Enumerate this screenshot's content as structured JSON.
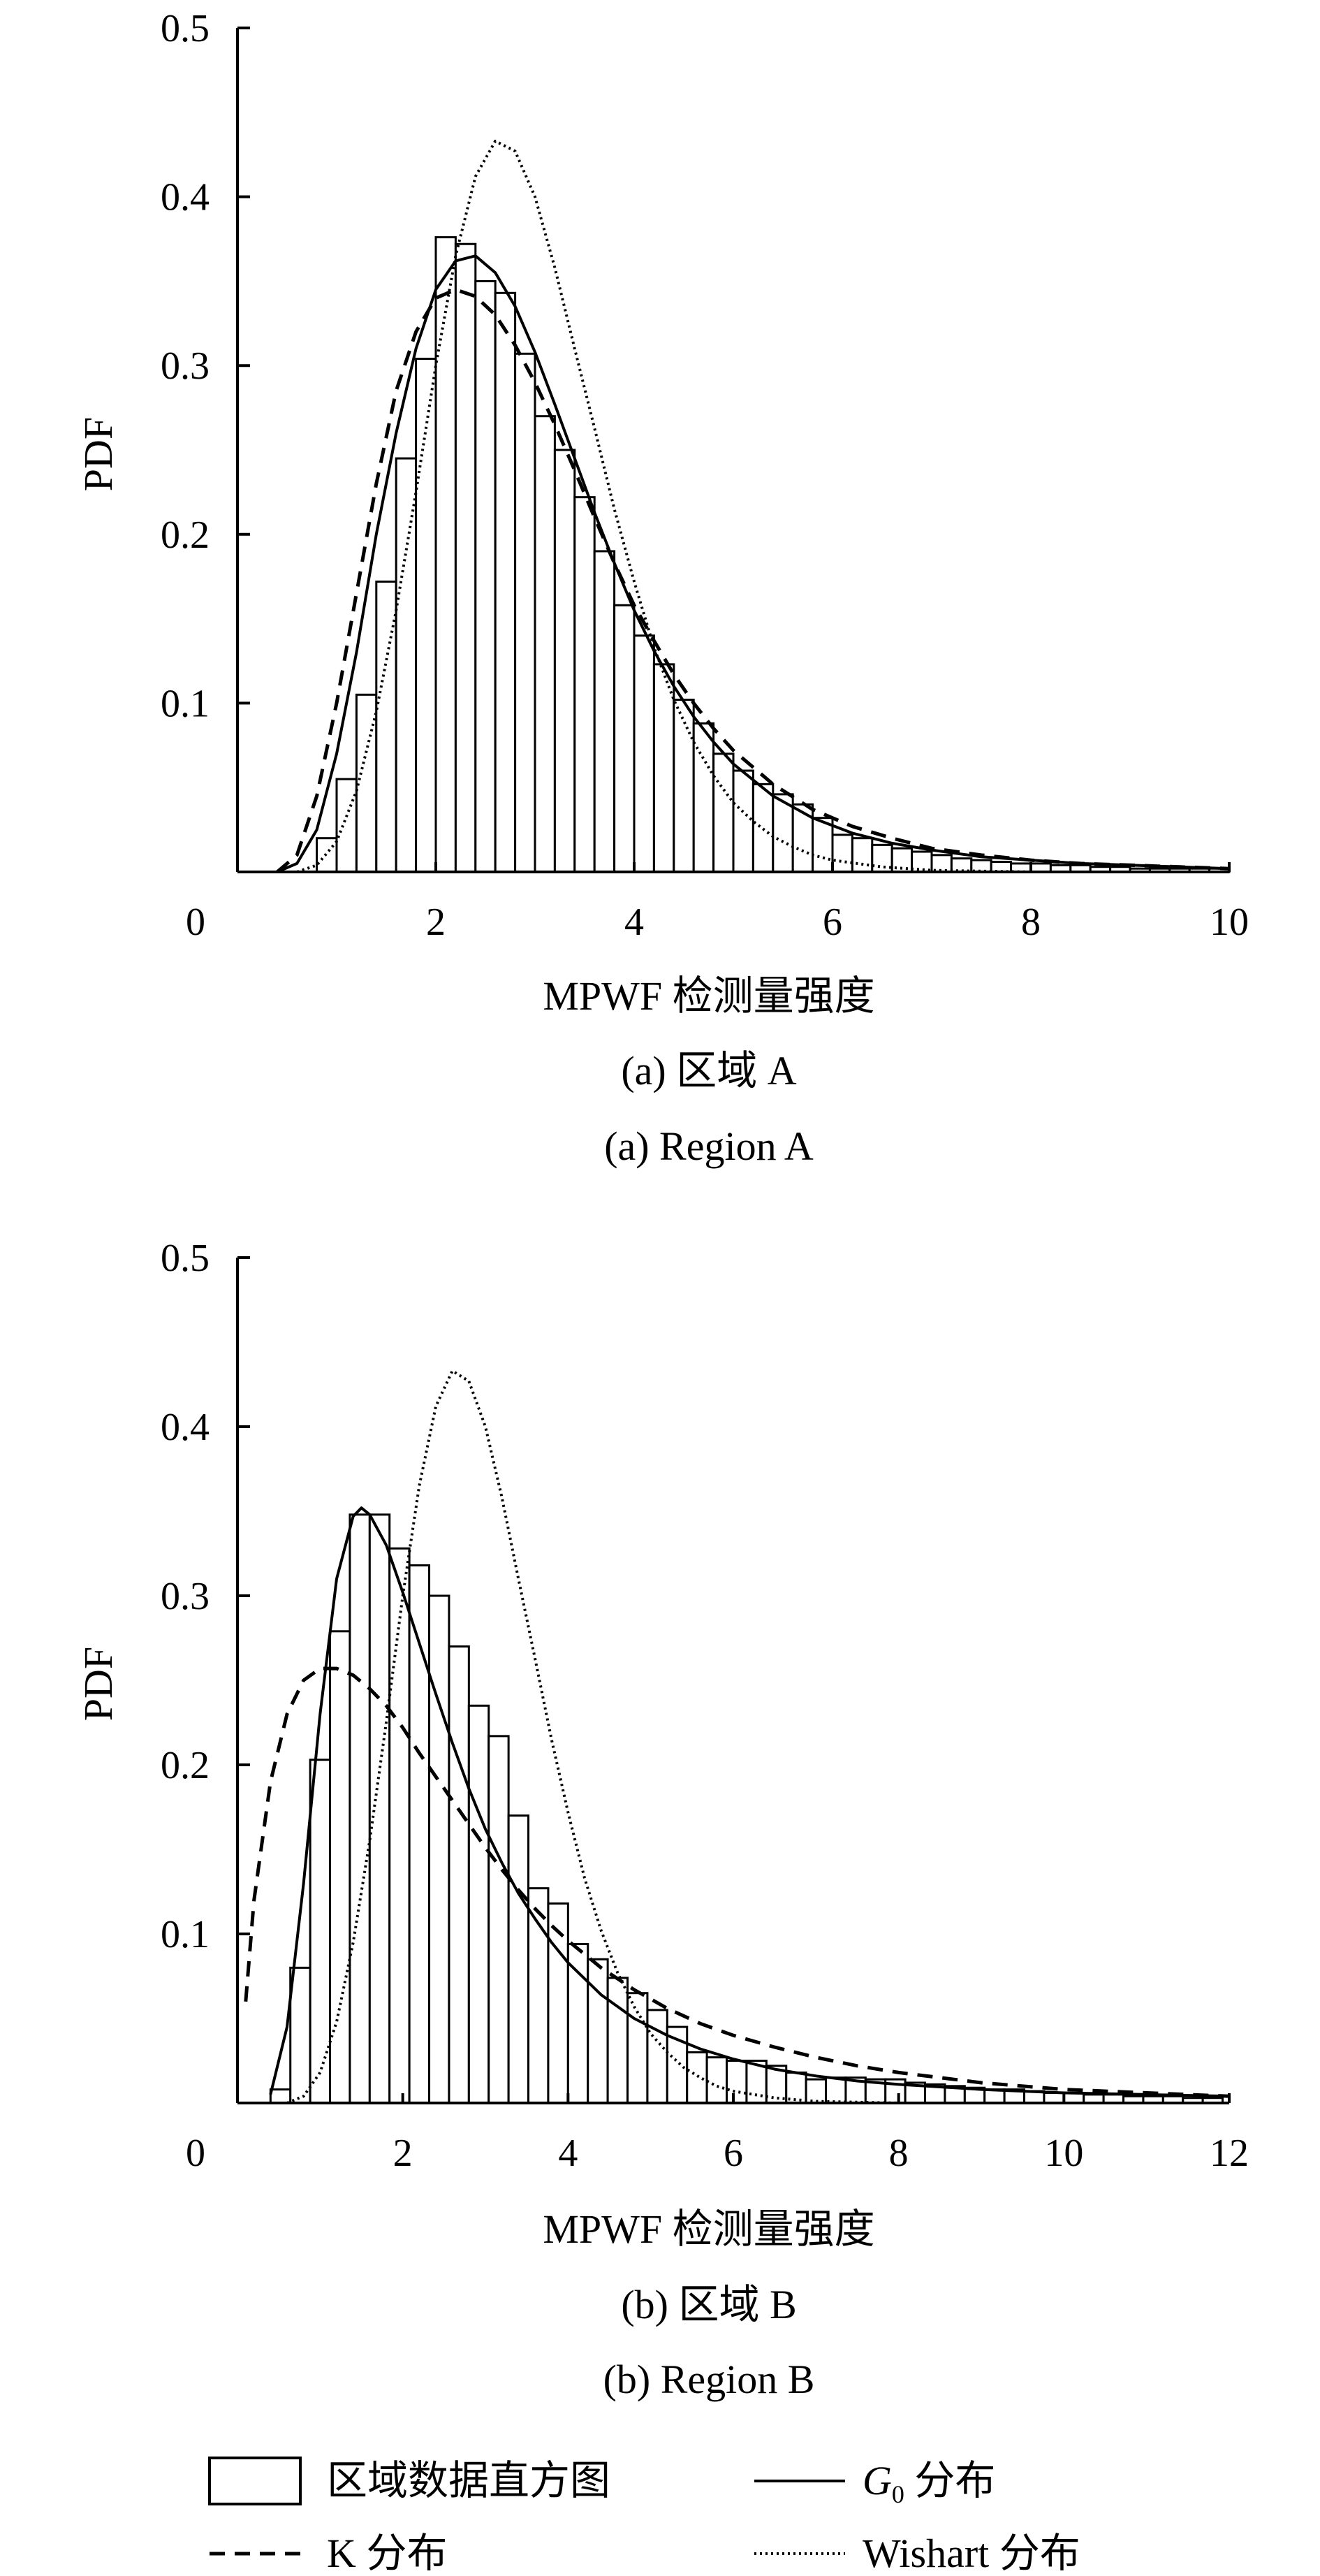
{
  "chart_data": [
    {
      "type": "bar",
      "subplot": "a",
      "xlabel": "MPWF 检测量强度",
      "ylabel": "PDF",
      "caption_cn": "(a) 区域 A",
      "caption_en": "(a) Region A",
      "xlim": [
        0,
        10
      ],
      "ylim": [
        0,
        0.5
      ],
      "xticks": [
        "0",
        "2",
        "4",
        "6",
        "8",
        "10"
      ],
      "yticks": [
        "0.1",
        "0.2",
        "0.3",
        "0.4",
        "0.5"
      ],
      "grid": false,
      "histogram": {
        "name": "区域数据直方图",
        "bin_width": 0.2,
        "bin_centers": [
          0.9,
          1.1,
          1.3,
          1.5,
          1.7,
          1.9,
          2.1,
          2.3,
          2.5,
          2.7,
          2.9,
          3.1,
          3.3,
          3.5,
          3.7,
          3.9,
          4.1,
          4.3,
          4.5,
          4.7,
          4.9,
          5.1,
          5.3,
          5.5,
          5.7,
          5.9,
          6.1,
          6.3,
          6.5,
          6.7,
          6.9,
          7.1,
          7.3,
          7.5,
          7.7,
          7.9,
          8.1,
          8.3,
          8.5,
          8.7,
          8.9,
          9.1,
          9.3,
          9.5,
          9.7,
          9.9
        ],
        "values": [
          0.02,
          0.055,
          0.105,
          0.172,
          0.245,
          0.304,
          0.376,
          0.372,
          0.35,
          0.343,
          0.307,
          0.27,
          0.25,
          0.222,
          0.19,
          0.158,
          0.14,
          0.123,
          0.102,
          0.088,
          0.07,
          0.06,
          0.052,
          0.046,
          0.04,
          0.032,
          0.022,
          0.02,
          0.016,
          0.014,
          0.012,
          0.01,
          0.008,
          0.007,
          0.006,
          0.005,
          0.005,
          0.004,
          0.004,
          0.003,
          0.003,
          0.002,
          0.002,
          0.002,
          0.002,
          0.002
        ]
      },
      "series": [
        {
          "name": "G0 分布",
          "style": "solid",
          "x": [
            0.4,
            0.6,
            0.8,
            1.0,
            1.2,
            1.4,
            1.6,
            1.8,
            2.0,
            2.2,
            2.4,
            2.6,
            2.8,
            3.0,
            3.2,
            3.4,
            3.6,
            3.8,
            4.0,
            4.2,
            4.4,
            4.6,
            4.8,
            5.0,
            5.4,
            5.8,
            6.2,
            6.6,
            7.0,
            7.5,
            8.0,
            8.5,
            9.0,
            9.5,
            10.0
          ],
          "y": [
            0.0,
            0.005,
            0.025,
            0.07,
            0.13,
            0.2,
            0.26,
            0.31,
            0.345,
            0.362,
            0.365,
            0.355,
            0.335,
            0.308,
            0.277,
            0.245,
            0.213,
            0.183,
            0.155,
            0.131,
            0.11,
            0.092,
            0.077,
            0.064,
            0.045,
            0.032,
            0.023,
            0.017,
            0.013,
            0.009,
            0.007,
            0.005,
            0.004,
            0.003,
            0.002
          ]
        },
        {
          "name": "K 分布",
          "style": "dashed",
          "x": [
            0.4,
            0.6,
            0.8,
            1.0,
            1.2,
            1.4,
            1.6,
            1.8,
            2.0,
            2.2,
            2.4,
            2.6,
            2.8,
            3.0,
            3.2,
            3.4,
            3.6,
            3.8,
            4.0,
            4.2,
            4.4,
            4.6,
            4.8,
            5.0,
            5.4,
            5.8,
            6.2,
            6.6,
            7.0,
            7.5,
            8.0,
            8.5,
            9.0,
            9.5,
            10.0
          ],
          "y": [
            0.0,
            0.01,
            0.045,
            0.1,
            0.165,
            0.23,
            0.285,
            0.32,
            0.34,
            0.345,
            0.341,
            0.33,
            0.312,
            0.29,
            0.265,
            0.238,
            0.21,
            0.183,
            0.158,
            0.137,
            0.117,
            0.1,
            0.085,
            0.072,
            0.052,
            0.037,
            0.027,
            0.02,
            0.014,
            0.01,
            0.007,
            0.005,
            0.004,
            0.003,
            0.002
          ]
        },
        {
          "name": "Wishart 分布",
          "style": "dotted",
          "x": [
            0.6,
            0.8,
            1.0,
            1.2,
            1.4,
            1.6,
            1.8,
            2.0,
            2.2,
            2.4,
            2.6,
            2.8,
            3.0,
            3.2,
            3.4,
            3.6,
            3.8,
            4.0,
            4.2,
            4.4,
            4.6,
            4.8,
            5.0,
            5.2,
            5.4,
            5.6,
            5.8,
            6.0,
            6.5,
            7.0,
            7.5,
            8.0
          ],
          "y": [
            0.0,
            0.004,
            0.018,
            0.048,
            0.095,
            0.155,
            0.225,
            0.3,
            0.365,
            0.412,
            0.433,
            0.427,
            0.4,
            0.358,
            0.31,
            0.263,
            0.215,
            0.172,
            0.133,
            0.102,
            0.077,
            0.057,
            0.041,
            0.03,
            0.021,
            0.015,
            0.01,
            0.007,
            0.003,
            0.001,
            0.0005,
            0.0
          ]
        }
      ]
    },
    {
      "type": "bar",
      "subplot": "b",
      "xlabel": "MPWF 检测量强度",
      "ylabel": "PDF",
      "caption_cn": "(b) 区域 B",
      "caption_en": "(b) Region B",
      "xlim": [
        0,
        12
      ],
      "ylim": [
        0,
        0.5
      ],
      "xticks": [
        "0",
        "2",
        "4",
        "6",
        "8",
        "10",
        "12"
      ],
      "yticks": [
        "0.1",
        "0.2",
        "0.3",
        "0.4",
        "0.5"
      ],
      "grid": false,
      "histogram": {
        "name": "区域数据直方图",
        "bin_width": 0.24,
        "bin_centers": [
          0.52,
          0.76,
          1.0,
          1.24,
          1.48,
          1.72,
          1.96,
          2.2,
          2.44,
          2.68,
          2.92,
          3.16,
          3.4,
          3.64,
          3.88,
          4.12,
          4.36,
          4.6,
          4.84,
          5.08,
          5.32,
          5.56,
          5.8,
          6.04,
          6.28,
          6.52,
          6.76,
          7.0,
          7.24,
          7.48,
          7.72,
          7.96,
          8.2,
          8.44,
          8.68,
          8.92,
          9.16,
          9.4,
          9.64,
          9.88,
          10.12,
          10.36,
          10.6,
          10.84,
          11.08,
          11.32,
          11.56,
          11.8
        ],
        "values": [
          0.008,
          0.08,
          0.203,
          0.279,
          0.348,
          0.348,
          0.328,
          0.318,
          0.3,
          0.27,
          0.235,
          0.217,
          0.17,
          0.127,
          0.118,
          0.094,
          0.085,
          0.074,
          0.065,
          0.055,
          0.045,
          0.03,
          0.027,
          0.025,
          0.025,
          0.022,
          0.018,
          0.014,
          0.015,
          0.015,
          0.014,
          0.014,
          0.012,
          0.011,
          0.01,
          0.009,
          0.008,
          0.008,
          0.007,
          0.006,
          0.006,
          0.005,
          0.005,
          0.004,
          0.004,
          0.004,
          0.003,
          0.003
        ]
      },
      "series": [
        {
          "name": "G0 分布",
          "style": "solid",
          "x": [
            0.4,
            0.6,
            0.8,
            1.0,
            1.2,
            1.4,
            1.5,
            1.6,
            1.8,
            2.0,
            2.2,
            2.4,
            2.6,
            2.8,
            3.0,
            3.2,
            3.4,
            3.6,
            3.8,
            4.0,
            4.4,
            4.8,
            5.2,
            5.6,
            6.0,
            6.5,
            7.0,
            7.5,
            8.0,
            9.0,
            10.0,
            11.0,
            12.0
          ],
          "y": [
            0.005,
            0.045,
            0.13,
            0.23,
            0.31,
            0.347,
            0.352,
            0.348,
            0.33,
            0.302,
            0.272,
            0.242,
            0.213,
            0.186,
            0.162,
            0.142,
            0.124,
            0.109,
            0.095,
            0.083,
            0.064,
            0.05,
            0.04,
            0.032,
            0.026,
            0.02,
            0.016,
            0.013,
            0.011,
            0.008,
            0.006,
            0.005,
            0.004
          ]
        },
        {
          "name": "K 分布",
          "style": "dashed",
          "x": [
            0.1,
            0.2,
            0.4,
            0.6,
            0.8,
            1.0,
            1.2,
            1.4,
            1.6,
            1.8,
            2.0,
            2.2,
            2.4,
            2.6,
            2.8,
            3.0,
            3.2,
            3.4,
            3.6,
            3.8,
            4.0,
            4.4,
            4.8,
            5.2,
            5.6,
            6.0,
            6.5,
            7.0,
            7.5,
            8.0,
            9.0,
            10.0,
            11.0,
            12.0
          ],
          "y": [
            0.06,
            0.12,
            0.19,
            0.23,
            0.25,
            0.257,
            0.257,
            0.253,
            0.245,
            0.235,
            0.222,
            0.207,
            0.193,
            0.179,
            0.165,
            0.151,
            0.138,
            0.126,
            0.115,
            0.105,
            0.096,
            0.08,
            0.067,
            0.056,
            0.047,
            0.04,
            0.033,
            0.027,
            0.022,
            0.018,
            0.012,
            0.008,
            0.006,
            0.004
          ]
        },
        {
          "name": "Wishart 分布",
          "style": "dotted",
          "x": [
            0.6,
            0.8,
            1.0,
            1.2,
            1.4,
            1.6,
            1.8,
            2.0,
            2.2,
            2.4,
            2.6,
            2.8,
            3.0,
            3.2,
            3.4,
            3.6,
            3.8,
            4.0,
            4.2,
            4.4,
            4.6,
            4.8,
            5.0,
            5.2,
            5.4,
            5.6,
            5.8,
            6.0,
            6.5,
            7.0,
            7.5,
            8.0
          ],
          "y": [
            0.0,
            0.004,
            0.018,
            0.048,
            0.095,
            0.155,
            0.225,
            0.3,
            0.365,
            0.412,
            0.433,
            0.427,
            0.4,
            0.358,
            0.31,
            0.263,
            0.215,
            0.172,
            0.133,
            0.102,
            0.077,
            0.057,
            0.041,
            0.03,
            0.021,
            0.015,
            0.01,
            0.007,
            0.003,
            0.001,
            0.0005,
            0.0
          ]
        }
      ]
    }
  ],
  "legend": {
    "placement": "bottom",
    "items": [
      {
        "key": "hist",
        "label": "区域数据直方图"
      },
      {
        "key": "g0",
        "label_main": "G",
        "label_sub": "0",
        "label_rest": " 分布"
      },
      {
        "key": "k",
        "label": "K 分布"
      },
      {
        "key": "wishart",
        "label": "Wishart 分布"
      }
    ]
  }
}
